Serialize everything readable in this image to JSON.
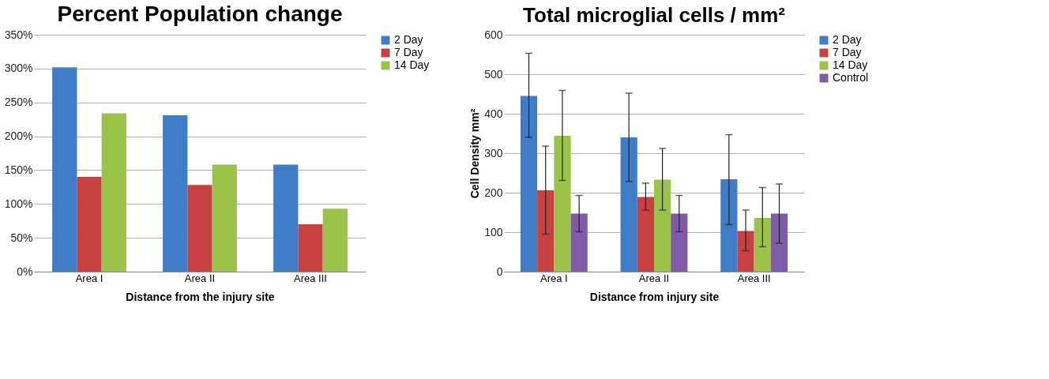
{
  "chart_data": [
    {
      "type": "bar",
      "title": "Percent Population  change",
      "xlabel": "Distance from the injury site",
      "categories": [
        "Area I",
        "Area II",
        "Area III"
      ],
      "series": [
        {
          "name": "2 Day",
          "color": "#3f7dc9",
          "values": [
            302,
            231,
            158
          ]
        },
        {
          "name": "7 Day",
          "color": "#c94040",
          "values": [
            140,
            128,
            70
          ]
        },
        {
          "name": "14 Day",
          "color": "#9bc34a",
          "values": [
            234,
            158,
            93
          ]
        }
      ],
      "ylim": [
        0,
        350
      ],
      "yticks": [
        {
          "value": 0,
          "label": "0%"
        },
        {
          "value": 50,
          "label": "50%"
        },
        {
          "value": 100,
          "label": "100%"
        },
        {
          "value": 150,
          "label": "150%"
        },
        {
          "value": 200,
          "label": "200%"
        },
        {
          "value": 250,
          "label": "250%"
        },
        {
          "value": 300,
          "label": "300%"
        },
        {
          "value": 350,
          "label": "350%"
        }
      ],
      "grid": "y",
      "legend": "right"
    },
    {
      "type": "bar",
      "title": "Total microglial cells / mm²",
      "xlabel": "Distance from injury site",
      "ylabel": "Cell Density mm²",
      "categories": [
        "Area I",
        "Area II",
        "Area III"
      ],
      "series": [
        {
          "name": "2 Day",
          "color": "#3f7dc9",
          "values": [
            445,
            340,
            234
          ],
          "errors": [
            [
              340,
              553
            ],
            [
              228,
              452
            ],
            [
              119,
              347
            ]
          ]
        },
        {
          "name": "7 Day",
          "color": "#c94040",
          "values": [
            206,
            189,
            103
          ],
          "errors": [
            [
              95,
              318
            ],
            [
              156,
              224
            ],
            [
              53,
              156
            ]
          ]
        },
        {
          "name": "14 Day",
          "color": "#9bc34a",
          "values": [
            344,
            233,
            136
          ],
          "errors": [
            [
              231,
              459
            ],
            [
              156,
              312
            ],
            [
              63,
              213
            ]
          ]
        },
        {
          "name": "Control",
          "color": "#7f5aa8",
          "values": [
            147,
            147,
            147
          ],
          "errors": [
            [
              101,
              193
            ],
            [
              101,
              193
            ],
            [
              72,
              222
            ]
          ]
        }
      ],
      "ylim": [
        0,
        600
      ],
      "yticks": [
        0,
        100,
        200,
        300,
        400,
        500,
        600
      ],
      "grid": "y",
      "legend": "right"
    }
  ]
}
